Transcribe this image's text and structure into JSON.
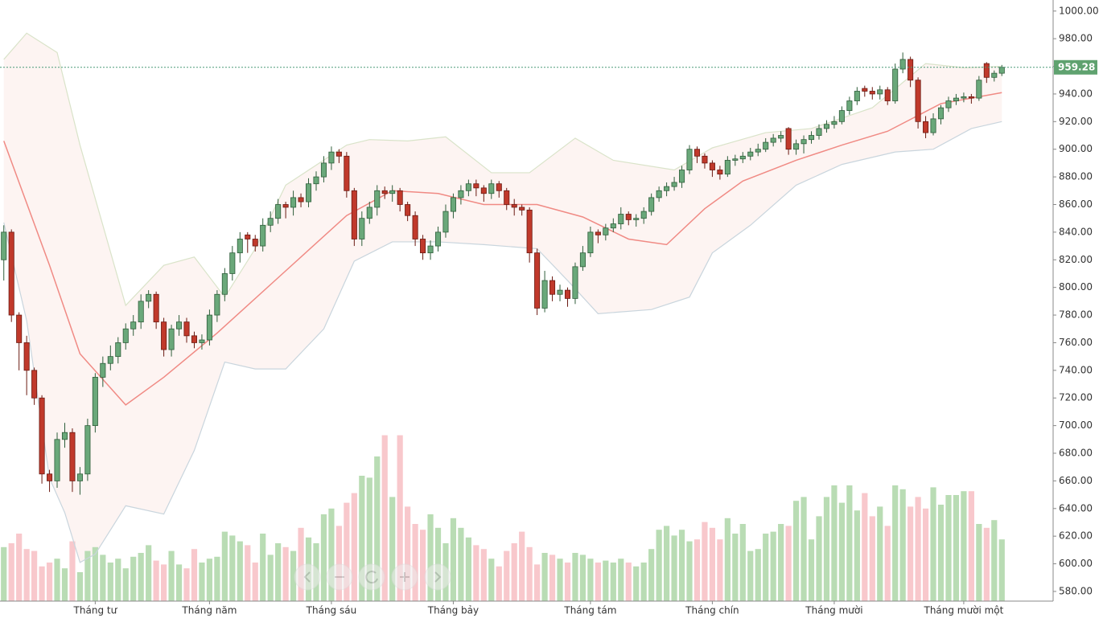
{
  "chart_data": {
    "type": "candlestick",
    "ylim": [
      573,
      1008
    ],
    "yticks": [
      {
        "value": 580,
        "label": "580.00"
      },
      {
        "value": 600,
        "label": "600.00"
      },
      {
        "value": 620,
        "label": "620.00"
      },
      {
        "value": 640,
        "label": "640.00"
      },
      {
        "value": 660,
        "label": "660.00"
      },
      {
        "value": 680,
        "label": "680.00"
      },
      {
        "value": 700,
        "label": "700.00"
      },
      {
        "value": 720,
        "label": "720.00"
      },
      {
        "value": 740,
        "label": "740.00"
      },
      {
        "value": 760,
        "label": "760.00"
      },
      {
        "value": 780,
        "label": "780.00"
      },
      {
        "value": 800,
        "label": "800.00"
      },
      {
        "value": 820,
        "label": "820.00"
      },
      {
        "value": 840,
        "label": "840.00"
      },
      {
        "value": 860,
        "label": "860.00"
      },
      {
        "value": 880,
        "label": "880.00"
      },
      {
        "value": 900,
        "label": "900.00"
      },
      {
        "value": 920,
        "label": "920.00"
      },
      {
        "value": 940,
        "label": "940.00"
      },
      {
        "value": 960,
        "label": "960.00"
      },
      {
        "value": 980,
        "label": "980.00"
      },
      {
        "value": 1000,
        "label": "1000.00"
      }
    ],
    "xticks": [
      {
        "value": 12,
        "label": "Tháng tư"
      },
      {
        "value": 27,
        "label": "Tháng năm"
      },
      {
        "value": 43,
        "label": "Tháng sáu"
      },
      {
        "value": 59,
        "label": "Tháng bảy"
      },
      {
        "value": 77,
        "label": "Tháng tám"
      },
      {
        "value": 93,
        "label": "Tháng chín"
      },
      {
        "value": 109,
        "label": "Tháng mười"
      },
      {
        "value": 126,
        "label": "Tháng mười một"
      }
    ],
    "last_price": 959.28,
    "up_color": "#6aa87a",
    "down_color": "#c0392b",
    "volume_up_color": "#b9dcb4",
    "volume_down_color": "#f8c8cc",
    "candles": [
      [
        820,
        845,
        805,
        840
      ],
      [
        840,
        842,
        775,
        780
      ],
      [
        780,
        782,
        740,
        760
      ],
      [
        760,
        765,
        722,
        740
      ],
      [
        740,
        742,
        715,
        720
      ],
      [
        720,
        722,
        658,
        665
      ],
      [
        665,
        668,
        652,
        660
      ],
      [
        660,
        695,
        655,
        690
      ],
      [
        690,
        702,
        684,
        695
      ],
      [
        695,
        698,
        652,
        660
      ],
      [
        660,
        670,
        650,
        665
      ],
      [
        665,
        705,
        660,
        700
      ],
      [
        700,
        738,
        695,
        735
      ],
      [
        735,
        750,
        728,
        745
      ],
      [
        745,
        758,
        740,
        750
      ],
      [
        750,
        764,
        745,
        760
      ],
      [
        760,
        774,
        755,
        770
      ],
      [
        770,
        780,
        765,
        775
      ],
      [
        775,
        795,
        770,
        790
      ],
      [
        790,
        798,
        785,
        795
      ],
      [
        795,
        797,
        770,
        775
      ],
      [
        775,
        778,
        750,
        755
      ],
      [
        755,
        773,
        750,
        770
      ],
      [
        770,
        780,
        765,
        775
      ],
      [
        775,
        778,
        760,
        765
      ],
      [
        765,
        768,
        756,
        760
      ],
      [
        760,
        766,
        755,
        762
      ],
      [
        762,
        784,
        758,
        780
      ],
      [
        780,
        798,
        775,
        795
      ],
      [
        795,
        814,
        790,
        810
      ],
      [
        810,
        830,
        805,
        825
      ],
      [
        825,
        840,
        818,
        835
      ],
      [
        838,
        840,
        825,
        835
      ],
      [
        835,
        838,
        826,
        830
      ],
      [
        830,
        850,
        826,
        845
      ],
      [
        845,
        855,
        840,
        850
      ],
      [
        850,
        864,
        846,
        860
      ],
      [
        860,
        862,
        850,
        858
      ],
      [
        858,
        870,
        852,
        865
      ],
      [
        865,
        868,
        858,
        862
      ],
      [
        862,
        879,
        858,
        875
      ],
      [
        875,
        884,
        870,
        880
      ],
      [
        880,
        895,
        876,
        890
      ],
      [
        890,
        902,
        885,
        898
      ],
      [
        898,
        900,
        890,
        895
      ],
      [
        895,
        898,
        865,
        870
      ],
      [
        870,
        872,
        830,
        835
      ],
      [
        835,
        855,
        830,
        850
      ],
      [
        850,
        862,
        846,
        858
      ],
      [
        858,
        874,
        852,
        870
      ],
      [
        870,
        873,
        864,
        868
      ],
      [
        868,
        874,
        862,
        870
      ],
      [
        870,
        872,
        855,
        860
      ],
      [
        860,
        862,
        848,
        852
      ],
      [
        852,
        855,
        830,
        835
      ],
      [
        835,
        838,
        820,
        825
      ],
      [
        825,
        834,
        820,
        830
      ],
      [
        830,
        844,
        826,
        840
      ],
      [
        840,
        860,
        836,
        855
      ],
      [
        855,
        868,
        850,
        865
      ],
      [
        865,
        874,
        860,
        870
      ],
      [
        870,
        878,
        866,
        875
      ],
      [
        875,
        878,
        866,
        872
      ],
      [
        872,
        874,
        862,
        868
      ],
      [
        868,
        878,
        864,
        875
      ],
      [
        875,
        877,
        865,
        870
      ],
      [
        870,
        872,
        856,
        860
      ],
      [
        860,
        864,
        852,
        858
      ],
      [
        858,
        860,
        852,
        856
      ],
      [
        856,
        858,
        818,
        825
      ],
      [
        825,
        828,
        780,
        785
      ],
      [
        785,
        812,
        782,
        805
      ],
      [
        805,
        808,
        790,
        795
      ],
      [
        795,
        802,
        790,
        798
      ],
      [
        798,
        800,
        786,
        792
      ],
      [
        792,
        818,
        788,
        815
      ],
      [
        815,
        830,
        812,
        825
      ],
      [
        825,
        844,
        822,
        840
      ],
      [
        840,
        842,
        832,
        838
      ],
      [
        838,
        846,
        834,
        843
      ],
      [
        843,
        850,
        840,
        846
      ],
      [
        846,
        858,
        842,
        853
      ],
      [
        853,
        855,
        845,
        849
      ],
      [
        849,
        853,
        844,
        850
      ],
      [
        850,
        858,
        846,
        855
      ],
      [
        855,
        868,
        852,
        865
      ],
      [
        865,
        873,
        862,
        870
      ],
      [
        870,
        876,
        866,
        873
      ],
      [
        873,
        880,
        870,
        876
      ],
      [
        876,
        888,
        872,
        885
      ],
      [
        885,
        903,
        882,
        900
      ],
      [
        900,
        902,
        890,
        895
      ],
      [
        895,
        897,
        886,
        890
      ],
      [
        890,
        892,
        880,
        885
      ],
      [
        885,
        888,
        878,
        882
      ],
      [
        882,
        895,
        880,
        892
      ],
      [
        892,
        896,
        888,
        893
      ],
      [
        893,
        898,
        890,
        895
      ],
      [
        895,
        901,
        892,
        898
      ],
      [
        898,
        904,
        895,
        900
      ],
      [
        900,
        908,
        898,
        905
      ],
      [
        905,
        911,
        902,
        908
      ],
      [
        908,
        913,
        905,
        910
      ],
      [
        915,
        916,
        896,
        900
      ],
      [
        900,
        907,
        896,
        904
      ],
      [
        904,
        910,
        897,
        907
      ],
      [
        907,
        913,
        904,
        910
      ],
      [
        910,
        918,
        907,
        915
      ],
      [
        915,
        921,
        912,
        918
      ],
      [
        918,
        924,
        915,
        920
      ],
      [
        920,
        931,
        918,
        928
      ],
      [
        928,
        938,
        925,
        935
      ],
      [
        935,
        945,
        932,
        942
      ],
      [
        944,
        946,
        938,
        942
      ],
      [
        942,
        945,
        936,
        940
      ],
      [
        940,
        946,
        936,
        943
      ],
      [
        943,
        945,
        932,
        935
      ],
      [
        935,
        962,
        933,
        958
      ],
      [
        958,
        970,
        955,
        965
      ],
      [
        965,
        967,
        945,
        950
      ],
      [
        950,
        952,
        915,
        920
      ],
      [
        920,
        924,
        908,
        912
      ],
      [
        912,
        926,
        910,
        922
      ],
      [
        922,
        932,
        918,
        930
      ],
      [
        930,
        938,
        927,
        935
      ],
      [
        935,
        940,
        932,
        937
      ],
      [
        937,
        941,
        934,
        938
      ],
      [
        938,
        940,
        933,
        937
      ],
      [
        937,
        953,
        935,
        950
      ],
      [
        962,
        963,
        948,
        952
      ],
      [
        952,
        957,
        949,
        955
      ],
      [
        955,
        961,
        953,
        959.28
      ]
    ],
    "volume": [
      28,
      30,
      35,
      27,
      26,
      18,
      20,
      22,
      17,
      31,
      15,
      26,
      28,
      24,
      20,
      22,
      17,
      23,
      25,
      29,
      21,
      19,
      26,
      19,
      17,
      27,
      20,
      22,
      23,
      36,
      34,
      31,
      29,
      20,
      35,
      24,
      30,
      28,
      26,
      38,
      33,
      30,
      45,
      48,
      39,
      51,
      56,
      65,
      64,
      75,
      86,
      54,
      86,
      49,
      40,
      37,
      45,
      38,
      30,
      43,
      38,
      33,
      29,
      27,
      22,
      18,
      26,
      30,
      36,
      28,
      19,
      25,
      24,
      22,
      20,
      25,
      24,
      22,
      20,
      21,
      20,
      22,
      20,
      18,
      20,
      27,
      37,
      39,
      34,
      37,
      31,
      32,
      41,
      38,
      32,
      43,
      35,
      40,
      26,
      27,
      35,
      36,
      40,
      39,
      52,
      54,
      32,
      44,
      54,
      60,
      51,
      60,
      47,
      56,
      44,
      49,
      39,
      60,
      58,
      49,
      54,
      48,
      59,
      50,
      55,
      55,
      57,
      57,
      40,
      38,
      42,
      32
    ],
    "bands": [
      {
        "color": "#d9e3c9",
        "x": [
          0,
          3,
          7,
          10,
          16,
          21,
          25,
          29,
          33,
          37,
          45,
          48,
          53,
          58,
          64,
          69,
          75,
          80,
          88,
          93,
          100,
          106,
          114,
          121,
          126,
          131
        ],
        "values": [
          965,
          984,
          970,
          903,
          787,
          816,
          822,
          793,
          828,
          874,
          903,
          907,
          906,
          909,
          883,
          883,
          908,
          892,
          885,
          901,
          912,
          915,
          930,
          962,
          959,
          960
        ]
      },
      {
        "color": "#f08a84",
        "x": [
          0,
          6,
          10,
          16,
          21,
          28,
          36,
          45,
          51,
          57,
          63,
          70,
          76,
          82,
          87,
          92,
          97,
          104,
          110,
          116,
          123,
          131
        ],
        "values": [
          906,
          816,
          752,
          715,
          735,
          767,
          807,
          852,
          870,
          868,
          860,
          860,
          851,
          835,
          831,
          857,
          877,
          892,
          903,
          913,
          933,
          941
        ]
      },
      {
        "color": "#c9d5dd",
        "x": [
          0,
          3,
          6,
          8,
          10,
          12,
          16,
          21,
          25,
          29,
          33,
          37,
          42,
          46,
          51,
          57,
          63,
          70,
          74,
          78,
          85,
          90,
          93,
          98,
          104,
          110,
          117,
          122,
          127,
          131
        ],
        "values": [
          847,
          776,
          662,
          637,
          601,
          607,
          642,
          636,
          682,
          746,
          741,
          741,
          770,
          819,
          833,
          833,
          831,
          828,
          805,
          781,
          784,
          793,
          825,
          845,
          874,
          889,
          898,
          900,
          915,
          920
        ]
      }
    ]
  }
}
